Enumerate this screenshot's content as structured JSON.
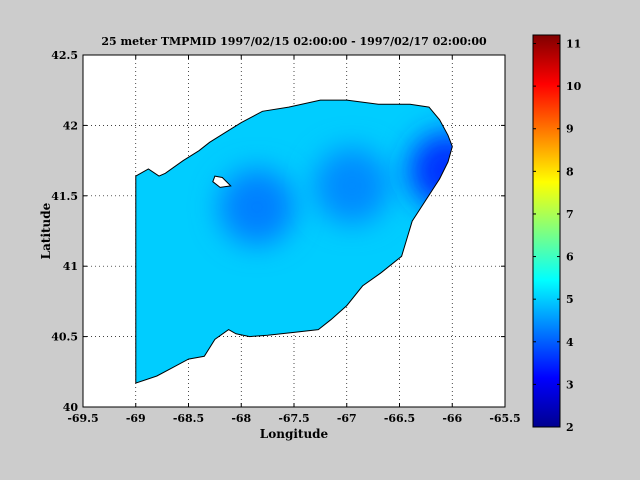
{
  "chart_data": {
    "type": "heatmap",
    "title": "25 meter TMPMID  1997/02/15 02:00:00 - 1997/02/17 02:00:00",
    "xlabel": "Longitude",
    "ylabel": "Latitude",
    "xlim": [
      -69.5,
      -65.5
    ],
    "ylim": [
      40,
      42.5
    ],
    "x_ticks": [
      -69.5,
      -69,
      -68.5,
      -68,
      -67.5,
      -67,
      -66.5,
      -66,
      -65.5
    ],
    "x_tick_labels": [
      "-69.5",
      "-69",
      "-68.5",
      "-68",
      "-67.5",
      "-67",
      "-66.5",
      "-66",
      "-65.5"
    ],
    "y_ticks": [
      40,
      40.5,
      41,
      41.5,
      42,
      42.5
    ],
    "y_tick_labels": [
      "40",
      "40.5",
      "41",
      "41.5",
      "42",
      "42.5"
    ],
    "grid": true,
    "colorbar": {
      "range": [
        2,
        11.2
      ],
      "ticks": [
        2,
        3,
        4,
        5,
        6,
        7,
        8,
        9,
        10,
        11
      ],
      "tick_labels": [
        "2",
        "3",
        "4",
        "5",
        "6",
        "7",
        "8",
        "9",
        "10",
        "11"
      ],
      "colormap": "jet"
    },
    "domain_outline": [
      [
        -69.0,
        41.64
      ],
      [
        -68.88,
        41.69
      ],
      [
        -68.78,
        41.64
      ],
      [
        -68.72,
        41.66
      ],
      [
        -68.55,
        41.75
      ],
      [
        -68.4,
        41.82
      ],
      [
        -68.3,
        41.88
      ],
      [
        -68.15,
        41.95
      ],
      [
        -68.0,
        42.02
      ],
      [
        -67.8,
        42.1
      ],
      [
        -67.55,
        42.13
      ],
      [
        -67.25,
        42.18
      ],
      [
        -67.0,
        42.18
      ],
      [
        -66.7,
        42.15
      ],
      [
        -66.4,
        42.15
      ],
      [
        -66.22,
        42.13
      ],
      [
        -66.12,
        42.04
      ],
      [
        -66.04,
        41.93
      ],
      [
        -66.0,
        41.85
      ],
      [
        -66.04,
        41.74
      ],
      [
        -66.12,
        41.62
      ],
      [
        -66.25,
        41.47
      ],
      [
        -66.38,
        41.32
      ],
      [
        -66.48,
        41.07
      ],
      [
        -66.68,
        40.95
      ],
      [
        -66.85,
        40.86
      ],
      [
        -67.0,
        40.72
      ],
      [
        -67.15,
        40.62
      ],
      [
        -67.27,
        40.55
      ],
      [
        -67.5,
        40.53
      ],
      [
        -67.75,
        40.51
      ],
      [
        -67.92,
        40.5
      ],
      [
        -68.05,
        40.52
      ],
      [
        -68.12,
        40.55
      ],
      [
        -68.25,
        40.48
      ],
      [
        -68.35,
        40.36
      ],
      [
        -68.5,
        40.34
      ],
      [
        -68.65,
        40.28
      ],
      [
        -68.8,
        40.22
      ],
      [
        -69.0,
        40.17
      ]
    ],
    "island_outline": [
      [
        -68.25,
        41.64
      ],
      [
        -68.18,
        41.63
      ],
      [
        -68.1,
        41.57
      ],
      [
        -68.2,
        41.56
      ],
      [
        -68.27,
        41.6
      ]
    ],
    "field_summary": {
      "overall_value": 5.0,
      "cold_pools": [
        {
          "lon": -67.85,
          "lat": 41.42,
          "value": 4.3
        },
        {
          "lon": -66.95,
          "lat": 41.57,
          "value": 4.4
        },
        {
          "lon": -66.05,
          "lat": 41.68,
          "value": 3.6
        }
      ]
    }
  }
}
